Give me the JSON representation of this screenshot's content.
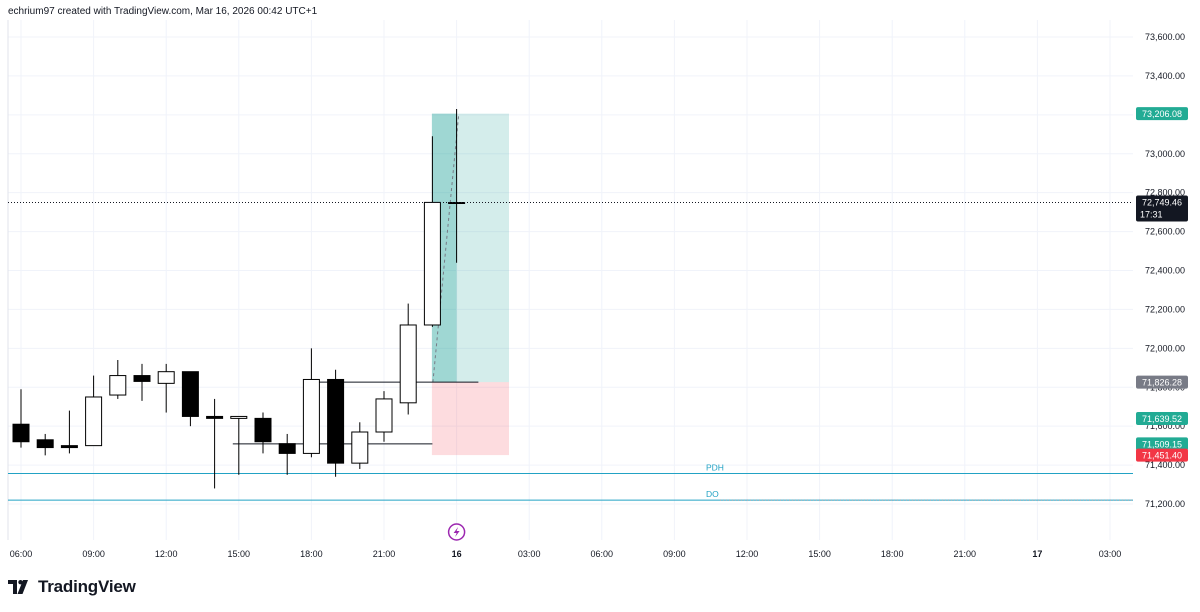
{
  "header": {
    "attribution": "echrium97 created with TradingView.com, Mar 16, 2026 00:42 UTC+1"
  },
  "branding": {
    "logo_icon": "tradingview-logo-icon",
    "name": "TradingView"
  },
  "chart_data": {
    "type": "candlestick",
    "ylim": [
      71100,
      73700
    ],
    "y_ticks": [
      71200,
      71400,
      71600,
      71800,
      72000,
      72200,
      72400,
      72600,
      72800,
      73000,
      73200,
      73400,
      73600
    ],
    "y_tick_labels": [
      "71,200.00",
      "71,400.00",
      "71,600.00",
      "71,800.00",
      "72,000.00",
      "72,200.00",
      "72,400.00",
      "72,600.00",
      "72,800.00",
      "73,000.00",
      "73,200.00",
      "73,400.00",
      "73,600.00"
    ],
    "x_ticks": [
      {
        "bar": 0,
        "label": "06:00"
      },
      {
        "bar": 3,
        "label": "09:00"
      },
      {
        "bar": 6,
        "label": "12:00"
      },
      {
        "bar": 9,
        "label": "15:00"
      },
      {
        "bar": 12,
        "label": "18:00"
      },
      {
        "bar": 15,
        "label": "21:00"
      },
      {
        "bar": 18,
        "label": "16"
      },
      {
        "bar": 21,
        "label": "03:00"
      },
      {
        "bar": 24,
        "label": "06:00"
      },
      {
        "bar": 27,
        "label": "09:00"
      },
      {
        "bar": 30,
        "label": "12:00"
      },
      {
        "bar": 33,
        "label": "15:00"
      },
      {
        "bar": 36,
        "label": "18:00"
      },
      {
        "bar": 39,
        "label": "21:00"
      },
      {
        "bar": 42,
        "label": "17"
      },
      {
        "bar": 45,
        "label": "03:00"
      }
    ],
    "candles": [
      {
        "o": 71610,
        "h": 71790,
        "l": 71490,
        "c": 71520
      },
      {
        "o": 71530,
        "h": 71560,
        "l": 71450,
        "c": 71490
      },
      {
        "o": 71500,
        "h": 71680,
        "l": 71460,
        "c": 71490
      },
      {
        "o": 71500,
        "h": 71860,
        "l": 71500,
        "c": 71750
      },
      {
        "o": 71760,
        "h": 71940,
        "l": 71740,
        "c": 71860
      },
      {
        "o": 71860,
        "h": 71920,
        "l": 71730,
        "c": 71830
      },
      {
        "o": 71820,
        "h": 71920,
        "l": 71670,
        "c": 71880
      },
      {
        "o": 71880,
        "h": 71880,
        "l": 71600,
        "c": 71650
      },
      {
        "o": 71650,
        "h": 71740,
        "l": 71280,
        "c": 71640
      },
      {
        "o": 71640,
        "h": 71650,
        "l": 71350,
        "c": 71650
      },
      {
        "o": 71640,
        "h": 71670,
        "l": 71460,
        "c": 71520
      },
      {
        "o": 71510,
        "h": 71560,
        "l": 71350,
        "c": 71460
      },
      {
        "o": 71460,
        "h": 72000,
        "l": 71440,
        "c": 71840
      },
      {
        "o": 71840,
        "h": 71890,
        "l": 71340,
        "c": 71410
      },
      {
        "o": 71410,
        "h": 71620,
        "l": 71380,
        "c": 71570
      },
      {
        "o": 71570,
        "h": 71780,
        "l": 71520,
        "c": 71740
      },
      {
        "o": 71720,
        "h": 72230,
        "l": 71660,
        "c": 72120
      },
      {
        "o": 72120,
        "h": 73090,
        "l": 72110,
        "c": 72750
      },
      {
        "o": 72749.46,
        "h": 73230,
        "l": 72440,
        "c": 72749.46
      }
    ],
    "position": {
      "type": "long",
      "entry": 71826.28,
      "target": 73206.08,
      "stop": 71451.4,
      "start_bar": 17,
      "end_bar": 20,
      "profit_color": "#26a69a",
      "loss_color": "#f7525f"
    },
    "horizontal_lines": [
      {
        "label": "PDH",
        "value": 71357,
        "color": "#22a2c4",
        "from_bar": 0
      },
      {
        "label": "DO",
        "value": 71220,
        "color": "#22a2c4",
        "from_bar": 0
      }
    ],
    "ray_lines": [
      {
        "value": 71826.28,
        "from_bar": 12,
        "to_bar": 18.9
      },
      {
        "value": 71509.15,
        "from_bar": 9,
        "to_bar": 17
      }
    ],
    "current_price": {
      "value": 72749.46,
      "label": "72,749.46",
      "countdown": "17:31",
      "bg": "#131722"
    },
    "price_tags": [
      {
        "value": 73206.08,
        "label": "73,206.08",
        "bg": "#22ab94"
      },
      {
        "value": 71826.28,
        "label": "71,826.28",
        "bg": "#787b86"
      },
      {
        "value": 71639.52,
        "label": "71,639.52",
        "bg": "#22ab94"
      },
      {
        "value": 71509.15,
        "label": "71,509.15",
        "bg": "#22ab94"
      },
      {
        "value": 71451.4,
        "label": "71,451.40",
        "bg": "#f23645"
      }
    ],
    "event_marker": {
      "bar": 18,
      "icon": "lightning-event-icon",
      "color": "#9c27b0"
    },
    "colors": {
      "up_body": "#ffffff",
      "down_body": "#000000",
      "wick": "#000000",
      "grid": "#f0f3fa",
      "axis_text": "#131722"
    }
  }
}
